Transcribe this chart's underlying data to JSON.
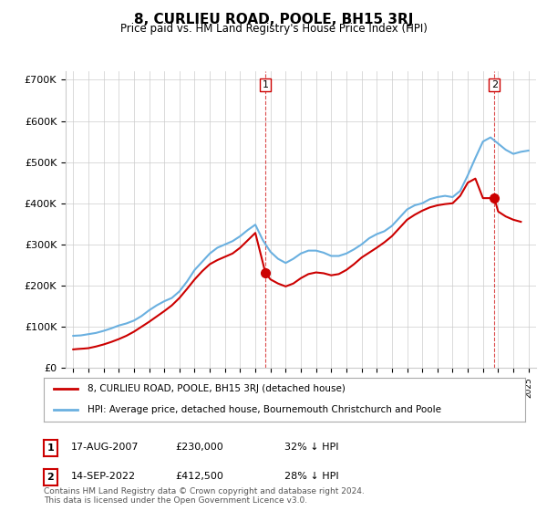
{
  "title": "8, CURLIEU ROAD, POOLE, BH15 3RJ",
  "subtitle": "Price paid vs. HM Land Registry's House Price Index (HPI)",
  "ylabel": "",
  "ylim": [
    0,
    720000
  ],
  "yticks": [
    0,
    100000,
    200000,
    300000,
    400000,
    500000,
    600000,
    700000
  ],
  "ytick_labels": [
    "£0",
    "£100K",
    "£200K",
    "£300K",
    "£400K",
    "£500K",
    "£600K",
    "£700K"
  ],
  "hpi_color": "#6ab0e0",
  "price_color": "#cc0000",
  "marker_color_1": "#cc0000",
  "marker_color_2": "#cc0000",
  "annotation1_label": "1",
  "annotation2_label": "2",
  "annotation1_date": "17-AUG-2007",
  "annotation1_price": "£230,000",
  "annotation1_hpi": "32% ↓ HPI",
  "annotation2_date": "14-SEP-2022",
  "annotation2_price": "£412,500",
  "annotation2_hpi": "28% ↓ HPI",
  "legend_line1": "8, CURLIEU ROAD, POOLE, BH15 3RJ (detached house)",
  "legend_line2": "HPI: Average price, detached house, Bournemouth Christchurch and Poole",
  "footnote": "Contains HM Land Registry data © Crown copyright and database right 2024.\nThis data is licensed under the Open Government Licence v3.0.",
  "background_color": "#ffffff",
  "grid_color": "#cccccc",
  "hpi_data": {
    "years": [
      1995,
      1995.5,
      1996,
      1996.5,
      1997,
      1997.5,
      1998,
      1998.5,
      1999,
      1999.5,
      2000,
      2000.5,
      2001,
      2001.5,
      2002,
      2002.5,
      2003,
      2003.5,
      2004,
      2004.5,
      2005,
      2005.5,
      2006,
      2006.5,
      2007,
      2007.5,
      2008,
      2008.5,
      2009,
      2009.5,
      2010,
      2010.5,
      2011,
      2011.5,
      2012,
      2012.5,
      2013,
      2013.5,
      2014,
      2014.5,
      2015,
      2015.5,
      2016,
      2016.5,
      2017,
      2017.5,
      2018,
      2018.5,
      2019,
      2019.5,
      2020,
      2020.5,
      2021,
      2021.5,
      2022,
      2022.5,
      2023,
      2023.5,
      2024,
      2024.5,
      2025
    ],
    "values": [
      78000,
      79000,
      82000,
      85000,
      90000,
      96000,
      103000,
      108000,
      115000,
      126000,
      140000,
      152000,
      162000,
      170000,
      186000,
      210000,
      238000,
      258000,
      278000,
      292000,
      300000,
      308000,
      320000,
      335000,
      348000,
      310000,
      282000,
      265000,
      255000,
      265000,
      278000,
      285000,
      285000,
      280000,
      272000,
      272000,
      278000,
      288000,
      300000,
      315000,
      325000,
      332000,
      345000,
      365000,
      385000,
      395000,
      400000,
      410000,
      415000,
      418000,
      415000,
      430000,
      468000,
      510000,
      550000,
      560000,
      545000,
      530000,
      520000,
      525000,
      528000
    ]
  },
  "price_data": {
    "years": [
      1995,
      1995.3,
      1995.7,
      1996,
      1996.5,
      1997,
      1997.5,
      1998,
      1998.5,
      1999,
      1999.5,
      2000,
      2000.5,
      2001,
      2001.5,
      2002,
      2002.5,
      2003,
      2003.5,
      2004,
      2004.5,
      2005,
      2005.5,
      2006,
      2006.5,
      2007,
      2007.67,
      2008,
      2008.5,
      2009,
      2009.5,
      2010,
      2010.5,
      2011,
      2011.5,
      2012,
      2012.5,
      2013,
      2013.5,
      2014,
      2014.5,
      2015,
      2015.5,
      2016,
      2016.5,
      2017,
      2017.5,
      2018,
      2018.5,
      2019,
      2019.5,
      2020,
      2020.5,
      2021,
      2021.5,
      2022,
      2022.75,
      2023,
      2023.5,
      2024,
      2024.5
    ],
    "values": [
      45000,
      46000,
      47000,
      48000,
      52000,
      57000,
      63000,
      70000,
      78000,
      88000,
      100000,
      112000,
      125000,
      138000,
      152000,
      170000,
      192000,
      215000,
      235000,
      252000,
      262000,
      270000,
      278000,
      292000,
      310000,
      328000,
      230000,
      215000,
      205000,
      198000,
      205000,
      218000,
      228000,
      232000,
      230000,
      225000,
      228000,
      238000,
      252000,
      268000,
      280000,
      292000,
      305000,
      320000,
      340000,
      360000,
      372000,
      382000,
      390000,
      395000,
      398000,
      400000,
      418000,
      450000,
      460000,
      412500,
      412500,
      380000,
      368000,
      360000,
      355000
    ]
  },
  "sale1_year": 2007.67,
  "sale1_price": 230000,
  "sale2_year": 2022.75,
  "sale2_price": 412500,
  "vline1_year": 2007.67,
  "vline2_year": 2022.75
}
